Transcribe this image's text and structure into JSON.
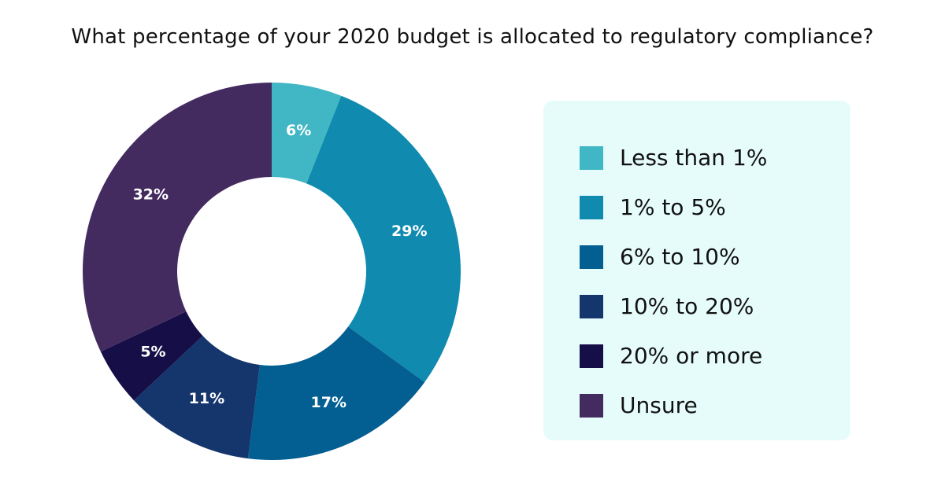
{
  "chart_data": {
    "type": "pie",
    "title": "What percentage of your 2020 budget is allocated to regulatory compliance?",
    "categories": [
      "Less than 1%",
      "1% to 5%",
      "6% to 10%",
      "10% to 20%",
      "20% or more",
      "Unsure"
    ],
    "values": [
      6,
      29,
      17,
      11,
      5,
      32
    ],
    "value_labels": [
      "6%",
      "29%",
      "17%",
      "11%",
      "5%",
      "32%"
    ],
    "colors": [
      "#41b6c4",
      "#108aaf",
      "#035e91",
      "#14366c",
      "#160f47",
      "#432b60"
    ],
    "donut": true,
    "legend_position": "right"
  }
}
